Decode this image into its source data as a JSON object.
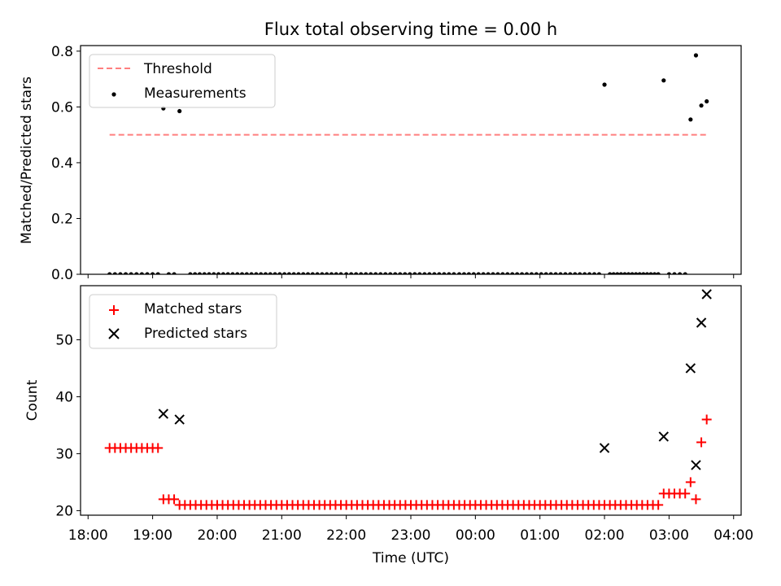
{
  "figure": {
    "title": "Flux total observing time = 0.00 h"
  },
  "chart_data": [
    {
      "type": "scatter",
      "panel": "top",
      "ylabel": "Matched/Predicted stars",
      "xlabel": "",
      "ylim": [
        0.0,
        0.82
      ],
      "yticks": [
        0.0,
        0.2,
        0.4,
        0.6,
        0.8
      ],
      "yticklabels": [
        "0.0",
        "0.2",
        "0.4",
        "0.6",
        "0.8"
      ],
      "legend_position": "top-left",
      "threshold": {
        "name": "Threshold",
        "value": 0.5,
        "x_start": "18:20",
        "x_end": "03:37",
        "color": "#ff7f7f",
        "style": "dashed"
      },
      "series": [
        {
          "name": "Measurements",
          "color": "#000000",
          "marker": "dot",
          "points": [
            [
              "19:10",
              0.595
            ],
            [
              "19:25",
              0.585
            ],
            [
              "02:00",
              0.68
            ],
            [
              "02:55",
              0.695
            ],
            [
              "03:20",
              0.555
            ],
            [
              "03:25",
              0.785
            ],
            [
              "03:30",
              0.605
            ],
            [
              "03:35",
              0.62
            ]
          ],
          "zero_runs": [
            [
              "18:20",
              "19:05",
              10
            ],
            [
              "19:15",
              "19:20",
              2
            ],
            [
              "19:35",
              "21:55",
              33
            ],
            [
              "22:00",
              "23:40",
              23
            ],
            [
              "23:45",
              "01:55",
              30
            ],
            [
              "02:05",
              "02:50",
              14
            ],
            [
              "03:00",
              "03:15",
              4
            ]
          ]
        }
      ]
    },
    {
      "type": "scatter",
      "panel": "bottom",
      "ylabel": "Count",
      "xlabel": "Time (UTC)",
      "ylim": [
        19.2,
        59.5
      ],
      "yticks": [
        20,
        30,
        40,
        50
      ],
      "yticklabels": [
        "20",
        "30",
        "40",
        "50"
      ],
      "xticklabels": [
        "18:00",
        "19:00",
        "20:00",
        "21:00",
        "22:00",
        "23:00",
        "00:00",
        "01:00",
        "02:00",
        "03:00",
        "04:00"
      ],
      "legend_position": "top-left",
      "series": [
        {
          "name": "Matched stars",
          "color": "#ff0000",
          "marker": "plus",
          "points": [
            [
              "19:10",
              22
            ],
            [
              "19:15",
              22
            ],
            [
              "19:20",
              22
            ],
            [
              "19:25",
              21
            ],
            [
              "02:00",
              21
            ],
            [
              "02:55",
              23
            ],
            [
              "03:20",
              25
            ],
            [
              "03:25",
              22
            ],
            [
              "03:30",
              32
            ],
            [
              "03:35",
              36
            ]
          ],
          "constant_runs": [
            [
              "18:20",
              "19:05",
              10,
              31
            ],
            [
              "19:30",
              "21:55",
              30,
              21
            ],
            [
              "22:00",
              "23:40",
              21,
              21
            ],
            [
              "23:45",
              "01:55",
              27,
              21
            ],
            [
              "02:05",
              "02:50",
              10,
              21
            ],
            [
              "03:00",
              "03:15",
              4,
              23
            ]
          ]
        },
        {
          "name": "Predicted stars",
          "color": "#000000",
          "marker": "x",
          "points": [
            [
              "19:10",
              37
            ],
            [
              "19:25",
              36
            ],
            [
              "02:00",
              31
            ],
            [
              "02:55",
              33
            ],
            [
              "03:20",
              45
            ],
            [
              "03:25",
              28
            ],
            [
              "03:30",
              53
            ],
            [
              "03:35",
              58
            ]
          ]
        }
      ]
    }
  ]
}
